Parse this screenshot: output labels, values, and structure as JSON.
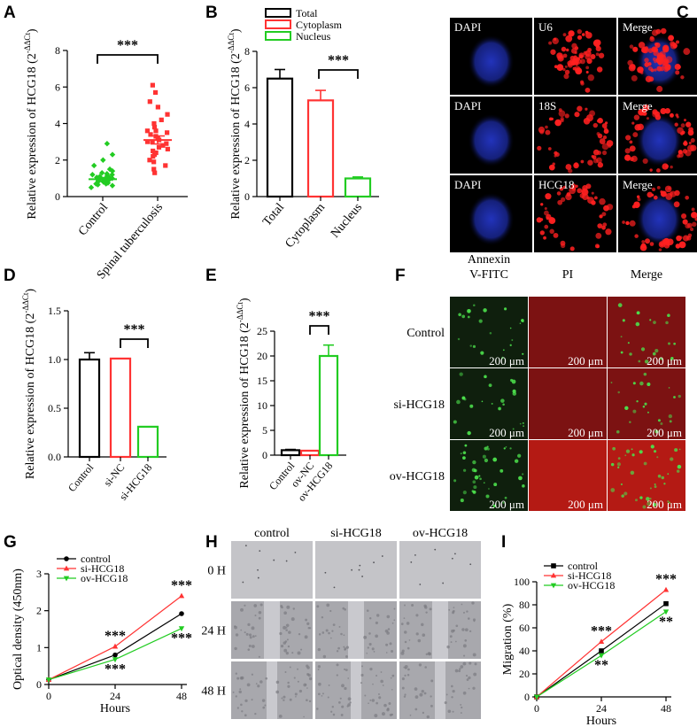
{
  "panels": [
    "A",
    "B",
    "C",
    "D",
    "E",
    "F",
    "G",
    "H",
    "I"
  ],
  "ylabel_hcg18": "Relative expression of HCG18 (2",
  "ylabel_sup": "-ΔΔCt",
  "ylabel_close": ")",
  "sig3": "***",
  "sig2": "**",
  "colors": {
    "black": "#000000",
    "red": "#ff3333",
    "green": "#22cc22",
    "blue_stain": "#1a2a9a",
    "red_stain": "#ff2020"
  },
  "panel_c": {
    "rows": [
      [
        "DAPI",
        "U6",
        "Merge"
      ],
      [
        "DAPI",
        "18S",
        "Merge"
      ],
      [
        "DAPI",
        "HCG18",
        "Merge"
      ]
    ]
  },
  "panel_f": {
    "col_headers": [
      "Annexin\nV-FITC",
      "PI",
      "Merge"
    ],
    "col_header_lines": [
      [
        "Annexin",
        "V-FITC"
      ],
      [
        "PI"
      ],
      [
        "Merge"
      ]
    ],
    "row_labels": [
      "Control",
      "si-HCG18",
      "ov-HCG18"
    ],
    "scale_text": "200 μm"
  },
  "panel_h": {
    "col_headers": [
      "control",
      "si-HCG18",
      "ov-HCG18"
    ],
    "row_labels": [
      "0 H",
      "24 H",
      "48 H"
    ]
  },
  "chart_data": [
    {
      "panel": "A",
      "type": "scatter",
      "categories": [
        "Control",
        "Spinal tuberculosis"
      ],
      "ylim": [
        0,
        8
      ],
      "yticks": [
        0,
        2,
        4,
        6,
        8
      ],
      "ylabel": "Relative expression of HCG18 (2-ΔΔCt)",
      "series": [
        {
          "name": "Control",
          "color": "#22cc22",
          "mean": 0.95,
          "sem": 0.08,
          "values": [
            0.5,
            0.6,
            0.65,
            0.7,
            0.75,
            0.8,
            0.85,
            0.9,
            0.9,
            0.95,
            0.95,
            1.0,
            1.0,
            1.05,
            1.1,
            1.1,
            1.15,
            1.2,
            1.25,
            1.3,
            1.4,
            1.5,
            1.7,
            2.0,
            2.3,
            2.9,
            0.7,
            0.8,
            1.0,
            1.2
          ]
        },
        {
          "name": "Spinal tuberculosis",
          "color": "#ff3333",
          "mean": 3.1,
          "sem": 0.22,
          "values": [
            1.3,
            1.5,
            1.7,
            1.9,
            2.0,
            2.2,
            2.4,
            2.5,
            2.6,
            2.7,
            2.8,
            2.9,
            3.0,
            3.0,
            3.1,
            3.2,
            3.3,
            3.4,
            3.5,
            3.6,
            3.8,
            4.0,
            4.2,
            4.5,
            4.9,
            5.2,
            5.7,
            6.1,
            2.3,
            3.6
          ]
        }
      ],
      "annotation": "***"
    },
    {
      "panel": "B",
      "type": "bar",
      "categories": [
        "Total",
        "Cytoplasm",
        "Nucleus"
      ],
      "values": [
        6.5,
        5.3,
        1.0
      ],
      "errors": [
        0.5,
        0.55,
        0.08
      ],
      "colors": [
        "#000000",
        "#ff3333",
        "#22cc22"
      ],
      "legend": [
        "Total",
        "Cytoplasm",
        "Nucleus"
      ],
      "ylim": [
        0,
        8
      ],
      "yticks": [
        0,
        2,
        4,
        6,
        8
      ],
      "ylabel": "Relative expression of HCG18 (2-ΔΔCt)",
      "annotation": "***"
    },
    {
      "panel": "D",
      "type": "bar",
      "categories": [
        "Control",
        "si-NC",
        "si-HCG18"
      ],
      "values": [
        1.0,
        1.01,
        0.31
      ],
      "errors": [
        0.07,
        0.0,
        0.0
      ],
      "colors": [
        "#000000",
        "#ff3333",
        "#22cc22"
      ],
      "ylim": [
        0,
        1.5
      ],
      "yticks": [
        0.0,
        0.5,
        1.0,
        1.5
      ],
      "yticklabels": [
        "0.0",
        "0.5",
        "1.0",
        "1.5"
      ],
      "ylabel": "Relative expression of HCG18 (2-ΔΔCt)",
      "annotation": "***"
    },
    {
      "panel": "E",
      "type": "bar",
      "categories": [
        "Control",
        "ov-NC",
        "ov-HCG18"
      ],
      "values": [
        1.0,
        0.9,
        20.0
      ],
      "errors": [
        0.15,
        0.0,
        2.2
      ],
      "colors": [
        "#000000",
        "#ff3333",
        "#22cc22"
      ],
      "ylim": [
        0,
        25
      ],
      "yticks": [
        0,
        5,
        10,
        15,
        20,
        25
      ],
      "ylabel": "Relative expression of HCG18 (2-ΔΔCt)",
      "annotation": "***"
    },
    {
      "panel": "G",
      "type": "line",
      "x": [
        0,
        24,
        48
      ],
      "xlabel": "Hours",
      "ylabel": "Optical density (450nm)",
      "ylim": [
        0,
        3
      ],
      "yticks": [
        0,
        1,
        2,
        3
      ],
      "xticks": [
        0,
        24,
        48
      ],
      "legend": "top-left",
      "series": [
        {
          "name": "control",
          "color": "#000000",
          "marker": "circle",
          "values": [
            0.13,
            0.8,
            1.92
          ]
        },
        {
          "name": "si-HCG18",
          "color": "#ff3333",
          "marker": "triangle",
          "values": [
            0.13,
            1.03,
            2.4
          ]
        },
        {
          "name": "ov-HCG18",
          "color": "#22cc22",
          "marker": "triangle-down",
          "values": [
            0.13,
            0.68,
            1.52
          ]
        }
      ],
      "annotations": [
        {
          "x": 24,
          "series": "si-HCG18",
          "text": "***",
          "position": "above"
        },
        {
          "x": 24,
          "series": "ov-HCG18",
          "text": "***",
          "position": "below"
        },
        {
          "x": 48,
          "series": "si-HCG18",
          "text": "***",
          "position": "above"
        },
        {
          "x": 48,
          "series": "ov-HCG18",
          "text": "***",
          "position": "below"
        }
      ]
    },
    {
      "panel": "I",
      "type": "line",
      "x": [
        0,
        24,
        48
      ],
      "xlabel": "Hours",
      "ylabel": "Migration (%)",
      "ylim": [
        0,
        100
      ],
      "yticks": [
        0,
        20,
        40,
        60,
        80,
        100
      ],
      "xticks": [
        0,
        24,
        48
      ],
      "legend": "top-left",
      "series": [
        {
          "name": "control",
          "color": "#000000",
          "marker": "square",
          "values": [
            0,
            40,
            81
          ]
        },
        {
          "name": "si-HCG18",
          "color": "#ff3333",
          "marker": "triangle",
          "values": [
            0,
            48,
            93
          ]
        },
        {
          "name": "ov-HCG18",
          "color": "#22cc22",
          "marker": "triangle-down",
          "values": [
            0,
            36,
            74
          ]
        }
      ],
      "annotations": [
        {
          "x": 24,
          "series": "si-HCG18",
          "text": "***",
          "position": "above"
        },
        {
          "x": 24,
          "series": "ov-HCG18",
          "text": "**",
          "position": "below"
        },
        {
          "x": 48,
          "series": "si-HCG18",
          "text": "***",
          "position": "above"
        },
        {
          "x": 48,
          "series": "ov-HCG18",
          "text": "**",
          "position": "below"
        }
      ]
    }
  ]
}
